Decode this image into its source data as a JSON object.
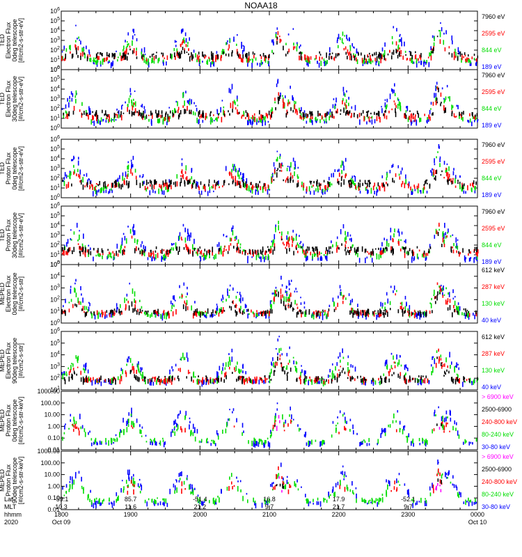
{
  "title": "NOAA18",
  "colors": {
    "blue": "#0000ff",
    "red": "#ff0000",
    "green": "#00dd00",
    "black": "#000000",
    "magenta": "#ff00ff"
  },
  "chart_data": [
    {
      "type": "scatter",
      "ylabel": [
        "TED",
        "Electron Flux",
        "0deg telescope",
        "[#/cm2-s-str-eV]"
      ],
      "y_scale": "log",
      "ylim": [
        1,
        1000000
      ],
      "yticks": [
        "10^0",
        "10^1",
        "10^2",
        "10^3",
        "10^4",
        "10^5",
        "10^6"
      ],
      "legend": [
        {
          "label": "7960 eV",
          "color": "black"
        },
        {
          "label": "2595 eV",
          "color": "red"
        },
        {
          "label": "844 eV",
          "color": "green"
        },
        {
          "label": "189 eV",
          "color": "blue"
        }
      ]
    },
    {
      "type": "scatter",
      "ylabel": [
        "TED",
        "Electron Flux",
        "30deg telescope",
        "[#/cm2-s-str-eV]"
      ],
      "y_scale": "log",
      "ylim": [
        1,
        1000000
      ],
      "yticks": [
        "10^0",
        "10^1",
        "10^2",
        "10^3",
        "10^4",
        "10^5",
        "10^6"
      ],
      "legend": [
        {
          "label": "7960 eV",
          "color": "black"
        },
        {
          "label": "2595 eV",
          "color": "red"
        },
        {
          "label": "844 eV",
          "color": "green"
        },
        {
          "label": "189 eV",
          "color": "blue"
        }
      ]
    },
    {
      "type": "scatter",
      "ylabel": [
        "TED",
        "Proton Flux",
        "0deg telescope",
        "[#/cm2-s-str-eV]"
      ],
      "y_scale": "log",
      "ylim": [
        1,
        1000000
      ],
      "yticks": [
        "10^0",
        "10^1",
        "10^2",
        "10^3",
        "10^4",
        "10^5",
        "10^6"
      ],
      "legend": [
        {
          "label": "7960 eV",
          "color": "black"
        },
        {
          "label": "2595 eV",
          "color": "red"
        },
        {
          "label": "844 eV",
          "color": "green"
        },
        {
          "label": "189 eV",
          "color": "blue"
        }
      ]
    },
    {
      "type": "scatter",
      "ylabel": [
        "TED",
        "Proton Flux",
        "30deg telescope",
        "[#/cm2-s-str-eV]"
      ],
      "y_scale": "log",
      "ylim": [
        1,
        1000000
      ],
      "yticks": [
        "10^0",
        "10^1",
        "10^2",
        "10^3",
        "10^4",
        "10^5",
        "10^6"
      ],
      "legend": [
        {
          "label": "7960 eV",
          "color": "black"
        },
        {
          "label": "2595 eV",
          "color": "red"
        },
        {
          "label": "844 eV",
          "color": "green"
        },
        {
          "label": "189 eV",
          "color": "blue"
        }
      ]
    },
    {
      "type": "scatter",
      "ylabel": [
        "MEPED",
        "Electron Flux",
        "0deg telescope",
        "[#/cm2-s-str]"
      ],
      "y_scale": "log",
      "ylim": [
        1,
        100000
      ],
      "yticks": [
        "10^0",
        "10^1",
        "10^2",
        "10^3",
        "10^4",
        "10^5"
      ],
      "legend": [
        {
          "label": "612 keV",
          "color": "black"
        },
        {
          "label": "287 keV",
          "color": "red"
        },
        {
          "label": "130 keV",
          "color": "green"
        },
        {
          "label": "40 keV",
          "color": "blue"
        }
      ]
    },
    {
      "type": "scatter",
      "ylabel": [
        "MEPED",
        "Electron Flux",
        "90deg telescope",
        "[#/cm2-s-str]"
      ],
      "y_scale": "log",
      "ylim": [
        10,
        1000000
      ],
      "yticks": [
        "10^1",
        "10^2",
        "10^3",
        "10^4",
        "10^5",
        "10^6"
      ],
      "legend": [
        {
          "label": "612 keV",
          "color": "black"
        },
        {
          "label": "287 keV",
          "color": "red"
        },
        {
          "label": "130 keV",
          "color": "green"
        },
        {
          "label": "40 keV",
          "color": "blue"
        }
      ]
    },
    {
      "type": "scatter",
      "ylabel": [
        "MEPED",
        "Proton Flux",
        "0deg telescope",
        "[#/cm2-s-str-keV]"
      ],
      "y_scale": "log",
      "ylim": [
        0.01,
        1000
      ],
      "yticks": [
        "0.01",
        "0.10",
        "1.00",
        "10.00",
        "100.00",
        "1000.00"
      ],
      "legend": [
        {
          "label": "> 6900 keV",
          "color": "magenta"
        },
        {
          "label": "2500-6900",
          "color": "black"
        },
        {
          "label": "240-800 keV",
          "color": "red"
        },
        {
          "label": "80-240 keV",
          "color": "green"
        },
        {
          "label": "30-80 keV",
          "color": "blue"
        }
      ]
    },
    {
      "type": "scatter",
      "ylabel": [
        "MEPED",
        "Proton Flux",
        "90deg telescope",
        "[#/cm2-s-str-keV]"
      ],
      "y_scale": "log",
      "ylim": [
        0.01,
        1000
      ],
      "yticks": [
        "0.01",
        "0.10",
        "1.00",
        "10.00",
        "100.00",
        "1000.00"
      ],
      "legend": [
        {
          "label": "> 6900 keV",
          "color": "magenta"
        },
        {
          "label": "2500-6900",
          "color": "black"
        },
        {
          "label": "240-800 keV",
          "color": "red"
        },
        {
          "label": "80-240 keV",
          "color": "green"
        },
        {
          "label": "30-80 keV",
          "color": "blue"
        }
      ]
    }
  ],
  "x_axis": {
    "row_labels": [
      "Lat",
      "MLT",
      "hhmm",
      "2020"
    ],
    "ticks": [
      {
        "lat": "-59.1",
        "mlt": "10.3",
        "hhmm": "1800",
        "date": "Oct 09"
      },
      {
        "lat": "85.7",
        "mlt": "11.6",
        "hhmm": "1900",
        "date": ""
      },
      {
        "lat": "-51.4",
        "mlt": "21.2",
        "hhmm": "2000",
        "date": ""
      },
      {
        "lat": "16.8",
        "mlt": "9.7",
        "hhmm": "2100",
        "date": ""
      },
      {
        "lat": "17.9",
        "mlt": "21.7",
        "hhmm": "2200",
        "date": ""
      },
      {
        "lat": "-52.1",
        "mlt": "9.7",
        "hhmm": "2300",
        "date": ""
      },
      {
        "lat": "",
        "mlt": "",
        "hhmm": "0000",
        "date": "Oct 10"
      }
    ]
  }
}
